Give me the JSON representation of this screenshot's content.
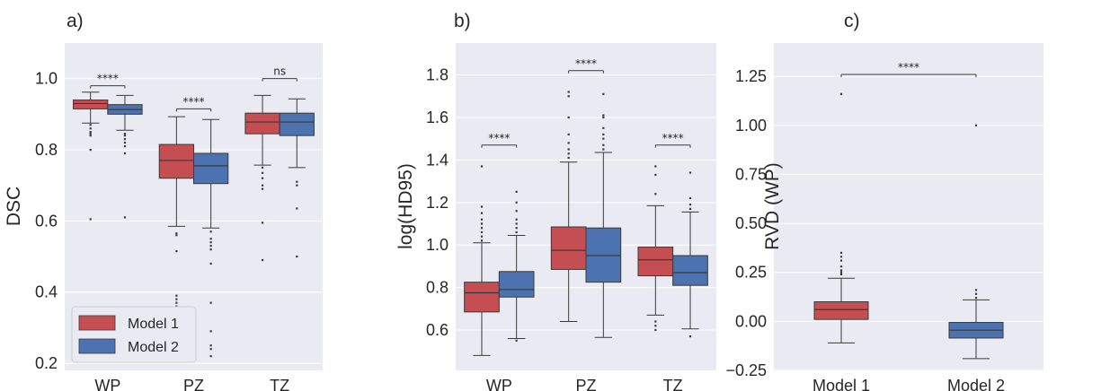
{
  "colors": {
    "background": "#eaeaf2",
    "grid": "#ffffff",
    "model1": "#c44e52",
    "model2": "#4c72b0",
    "line": "#3a3a3a",
    "text": "#262626"
  },
  "legend": {
    "placement": "lower-left of panel a",
    "entries": [
      "Model 1",
      "Model 2"
    ]
  },
  "chart_data": [
    {
      "type": "box",
      "panel_label": "a)",
      "ylabel": "DSC",
      "categories": [
        "WP",
        "PZ",
        "TZ"
      ],
      "ylim": [
        0.18,
        1.1
      ],
      "yticks": [
        0.2,
        0.4,
        0.6,
        0.8,
        1.0
      ],
      "ytick_labels": [
        "0.2",
        "0.4",
        "0.6",
        "0.8",
        "1.0"
      ],
      "grid": true,
      "series": [
        {
          "name": "Model 1",
          "boxes": [
            {
              "q1": 0.915,
              "median": 0.93,
              "q3": 0.94,
              "whislo": 0.875,
              "whishi": 0.962,
              "fliers": [
                0.87,
                0.86,
                0.85,
                0.845,
                0.84,
                0.8,
                0.605
              ]
            },
            {
              "q1": 0.72,
              "median": 0.77,
              "q3": 0.815,
              "whislo": 0.585,
              "whishi": 0.893,
              "fliers": [
                0.565,
                0.56,
                0.515,
                0.39,
                0.38,
                0.37,
                0.36
              ]
            },
            {
              "q1": 0.845,
              "median": 0.878,
              "q3": 0.903,
              "whislo": 0.757,
              "whishi": 0.953,
              "fliers": [
                0.75,
                0.735,
                0.72,
                0.7,
                0.69,
                0.595,
                0.49
              ]
            }
          ]
        },
        {
          "name": "Model 2",
          "boxes": [
            {
              "q1": 0.9,
              "median": 0.913,
              "q3": 0.927,
              "whislo": 0.855,
              "whishi": 0.953,
              "fliers": [
                0.845,
                0.84,
                0.83,
                0.82,
                0.81,
                0.79,
                0.61
              ]
            },
            {
              "q1": 0.705,
              "median": 0.755,
              "q3": 0.79,
              "whislo": 0.58,
              "whishi": 0.885,
              "fliers": [
                0.57,
                0.55,
                0.54,
                0.53,
                0.52,
                0.48,
                0.37,
                0.29,
                0.25,
                0.24,
                0.22
              ]
            },
            {
              "q1": 0.84,
              "median": 0.878,
              "q3": 0.903,
              "whislo": 0.75,
              "whishi": 0.943,
              "fliers": [
                0.71,
                0.7,
                0.635,
                0.5
              ]
            }
          ]
        }
      ],
      "annotations": [
        {
          "between": "WP",
          "text": "****",
          "y": 0.98
        },
        {
          "between": "PZ",
          "text": "****",
          "y": 0.915
        },
        {
          "between": "TZ",
          "text": "ns",
          "y": 1.0
        }
      ]
    },
    {
      "type": "box",
      "panel_label": "b)",
      "ylabel": "log(HD95)",
      "categories": [
        "WP",
        "PZ",
        "TZ"
      ],
      "ylim": [
        0.41,
        1.95
      ],
      "yticks": [
        0.6,
        0.8,
        1.0,
        1.2,
        1.4,
        1.6,
        1.8
      ],
      "ytick_labels": [
        "0.6",
        "0.8",
        "1.0",
        "1.2",
        "1.4",
        "1.6",
        "1.8"
      ],
      "grid": true,
      "series": [
        {
          "name": "Model 1",
          "boxes": [
            {
              "q1": 0.685,
              "median": 0.775,
              "q3": 0.825,
              "whislo": 0.48,
              "whishi": 1.01,
              "fliers": [
                1.02,
                1.04,
                1.06,
                1.08,
                1.1,
                1.12,
                1.15,
                1.18,
                1.37
              ]
            },
            {
              "q1": 0.885,
              "median": 0.975,
              "q3": 1.085,
              "whislo": 0.64,
              "whishi": 1.39,
              "fliers": [
                1.41,
                1.43,
                1.45,
                1.48,
                1.52,
                1.6,
                1.7,
                1.72
              ]
            },
            {
              "q1": 0.855,
              "median": 0.93,
              "q3": 0.99,
              "whislo": 0.67,
              "whishi": 1.185,
              "fliers": [
                0.64,
                0.62,
                0.6,
                1.24,
                1.33,
                1.37
              ]
            }
          ]
        },
        {
          "name": "Model 2",
          "boxes": [
            {
              "q1": 0.755,
              "median": 0.79,
              "q3": 0.875,
              "whislo": 0.56,
              "whishi": 1.045,
              "fliers": [
                0.55,
                1.06,
                1.08,
                1.1,
                1.12,
                1.16,
                1.2,
                1.25
              ]
            },
            {
              "q1": 0.825,
              "median": 0.95,
              "q3": 1.08,
              "whislo": 0.565,
              "whishi": 1.435,
              "fliers": [
                1.45,
                1.47,
                1.5,
                1.52,
                1.55,
                1.6,
                1.61,
                1.71
              ]
            },
            {
              "q1": 0.81,
              "median": 0.87,
              "q3": 0.95,
              "whislo": 0.605,
              "whishi": 1.155,
              "fliers": [
                0.57,
                1.17,
                1.19,
                1.22,
                1.34
              ]
            }
          ]
        }
      ],
      "annotations": [
        {
          "between": "WP",
          "text": "****",
          "y": 1.47
        },
        {
          "between": "PZ",
          "text": "****",
          "y": 1.82
        },
        {
          "between": "TZ",
          "text": "****",
          "y": 1.47
        }
      ]
    },
    {
      "type": "box",
      "panel_label": "c)",
      "ylabel": "RVD (WP)",
      "categories": [
        "Model 1",
        "Model 2"
      ],
      "ylim": [
        -0.25,
        1.42
      ],
      "yticks": [
        -0.25,
        0.0,
        0.25,
        0.5,
        0.75,
        1.0,
        1.25
      ],
      "ytick_labels": [
        "−0.25",
        "0.00",
        "0.25",
        "0.50",
        "0.75",
        "1.00",
        "1.25"
      ],
      "grid": true,
      "series": [
        {
          "name": "Model 1",
          "boxes": [
            {
              "q1": 0.01,
              "median": 0.06,
              "q3": 0.1,
              "whislo": -0.11,
              "whishi": 0.22,
              "fliers": [
                0.24,
                0.25,
                0.26,
                0.28,
                0.31,
                0.33,
                0.35,
                1.16
              ]
            }
          ]
        },
        {
          "name": "Model 2",
          "boxes": [
            {
              "q1": -0.085,
              "median": -0.045,
              "q3": -0.005,
              "whislo": -0.19,
              "whishi": 0.11,
              "fliers": [
                0.12,
                0.14,
                0.16,
                1.0
              ]
            }
          ]
        }
      ],
      "annotations": [
        {
          "between": "Model 1 - Model 2",
          "text": "****",
          "y": 1.26
        }
      ]
    }
  ]
}
